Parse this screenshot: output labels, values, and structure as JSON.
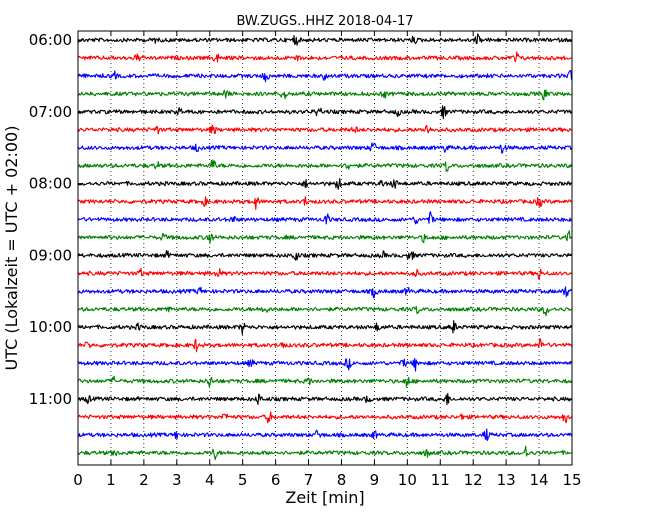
{
  "chart_data": {
    "type": "line",
    "title": "BW.ZUGS..HHZ 2018-04-17",
    "xlabel": "Zeit  [min]",
    "ylabel": "UTC (Lokalzeit = UTC + 02:00)",
    "xlim": [
      0,
      15
    ],
    "x_ticks": [
      "0",
      "1",
      "2",
      "3",
      "4",
      "5",
      "6",
      "7",
      "8",
      "9",
      "10",
      "11",
      "12",
      "13",
      "14",
      "15"
    ],
    "y_tick_labels": [
      "06:00",
      "07:00",
      "08:00",
      "09:00",
      "10:00",
      "11:00"
    ],
    "grid": "vertical dotted",
    "series_colors": [
      "#000000",
      "#ff0000",
      "#0000ff",
      "#008000"
    ],
    "traces": [
      {
        "start": "06:00",
        "color": "#000000",
        "events": [
          2.3,
          6.6,
          10.2,
          12.15
        ]
      },
      {
        "start": "06:15",
        "color": "#ff0000",
        "events": [
          1.8,
          4.2,
          6.65,
          13.3
        ]
      },
      {
        "start": "06:30",
        "color": "#0000ff",
        "events": [
          1.1,
          5.7,
          7.5,
          14.95
        ]
      },
      {
        "start": "06:45",
        "color": "#008000",
        "events": [
          4.5,
          6.25,
          9.3,
          14.15
        ]
      },
      {
        "start": "07:00",
        "color": "#000000",
        "events": [
          3.1,
          7.3,
          9.7,
          11.1
        ]
      },
      {
        "start": "07:15",
        "color": "#ff0000",
        "events": [
          2.4,
          4.1,
          8.4,
          10.6
        ]
      },
      {
        "start": "07:30",
        "color": "#0000ff",
        "events": [
          3.6,
          8.95,
          11.15,
          12.9
        ]
      },
      {
        "start": "07:45",
        "color": "#008000",
        "events": [
          2.4,
          4.1,
          8.2,
          11.2
        ]
      },
      {
        "start": "08:00",
        "color": "#000000",
        "events": [
          6.9,
          7.9,
          9.25,
          9.6
        ]
      },
      {
        "start": "08:15",
        "color": "#ff0000",
        "events": [
          3.85,
          5.4,
          6.9,
          14.0
        ]
      },
      {
        "start": "08:30",
        "color": "#0000ff",
        "events": [
          4.7,
          7.55,
          10.25,
          10.7
        ]
      },
      {
        "start": "08:45",
        "color": "#008000",
        "events": [
          2.6,
          4.0,
          10.5,
          14.9
        ]
      },
      {
        "start": "09:00",
        "color": "#000000",
        "events": [
          2.7,
          6.6,
          9.25,
          10.1
        ]
      },
      {
        "start": "09:15",
        "color": "#ff0000",
        "events": [
          1.9,
          4.25,
          10.25,
          14.0
        ]
      },
      {
        "start": "09:30",
        "color": "#0000ff",
        "events": [
          3.7,
          9.0,
          10.0,
          14.8
        ]
      },
      {
        "start": "09:45",
        "color": "#008000",
        "events": [
          2.7,
          5.65,
          10.3,
          14.2
        ]
      },
      {
        "start": "10:00",
        "color": "#000000",
        "events": [
          1.85,
          5.0,
          9.1,
          11.4
        ]
      },
      {
        "start": "10:15",
        "color": "#ff0000",
        "events": [
          0.3,
          3.6,
          6.2,
          14.05
        ]
      },
      {
        "start": "10:30",
        "color": "#0000ff",
        "events": [
          5.25,
          8.2,
          9.9,
          10.25
        ]
      },
      {
        "start": "10:45",
        "color": "#008000",
        "events": [
          1.1,
          4.0,
          7.0,
          10.0
        ]
      },
      {
        "start": "11:00",
        "color": "#000000",
        "events": [
          0.3,
          5.5,
          8.8,
          11.2
        ]
      },
      {
        "start": "11:15",
        "color": "#ff0000",
        "events": [
          4.45,
          5.8,
          11.7,
          14.8
        ]
      },
      {
        "start": "11:30",
        "color": "#0000ff",
        "events": [
          3.0,
          7.3,
          9.0,
          12.4
        ]
      },
      {
        "start": "11:45",
        "color": "#008000",
        "events": [
          1.1,
          4.15,
          10.6,
          13.6
        ]
      }
    ]
  }
}
